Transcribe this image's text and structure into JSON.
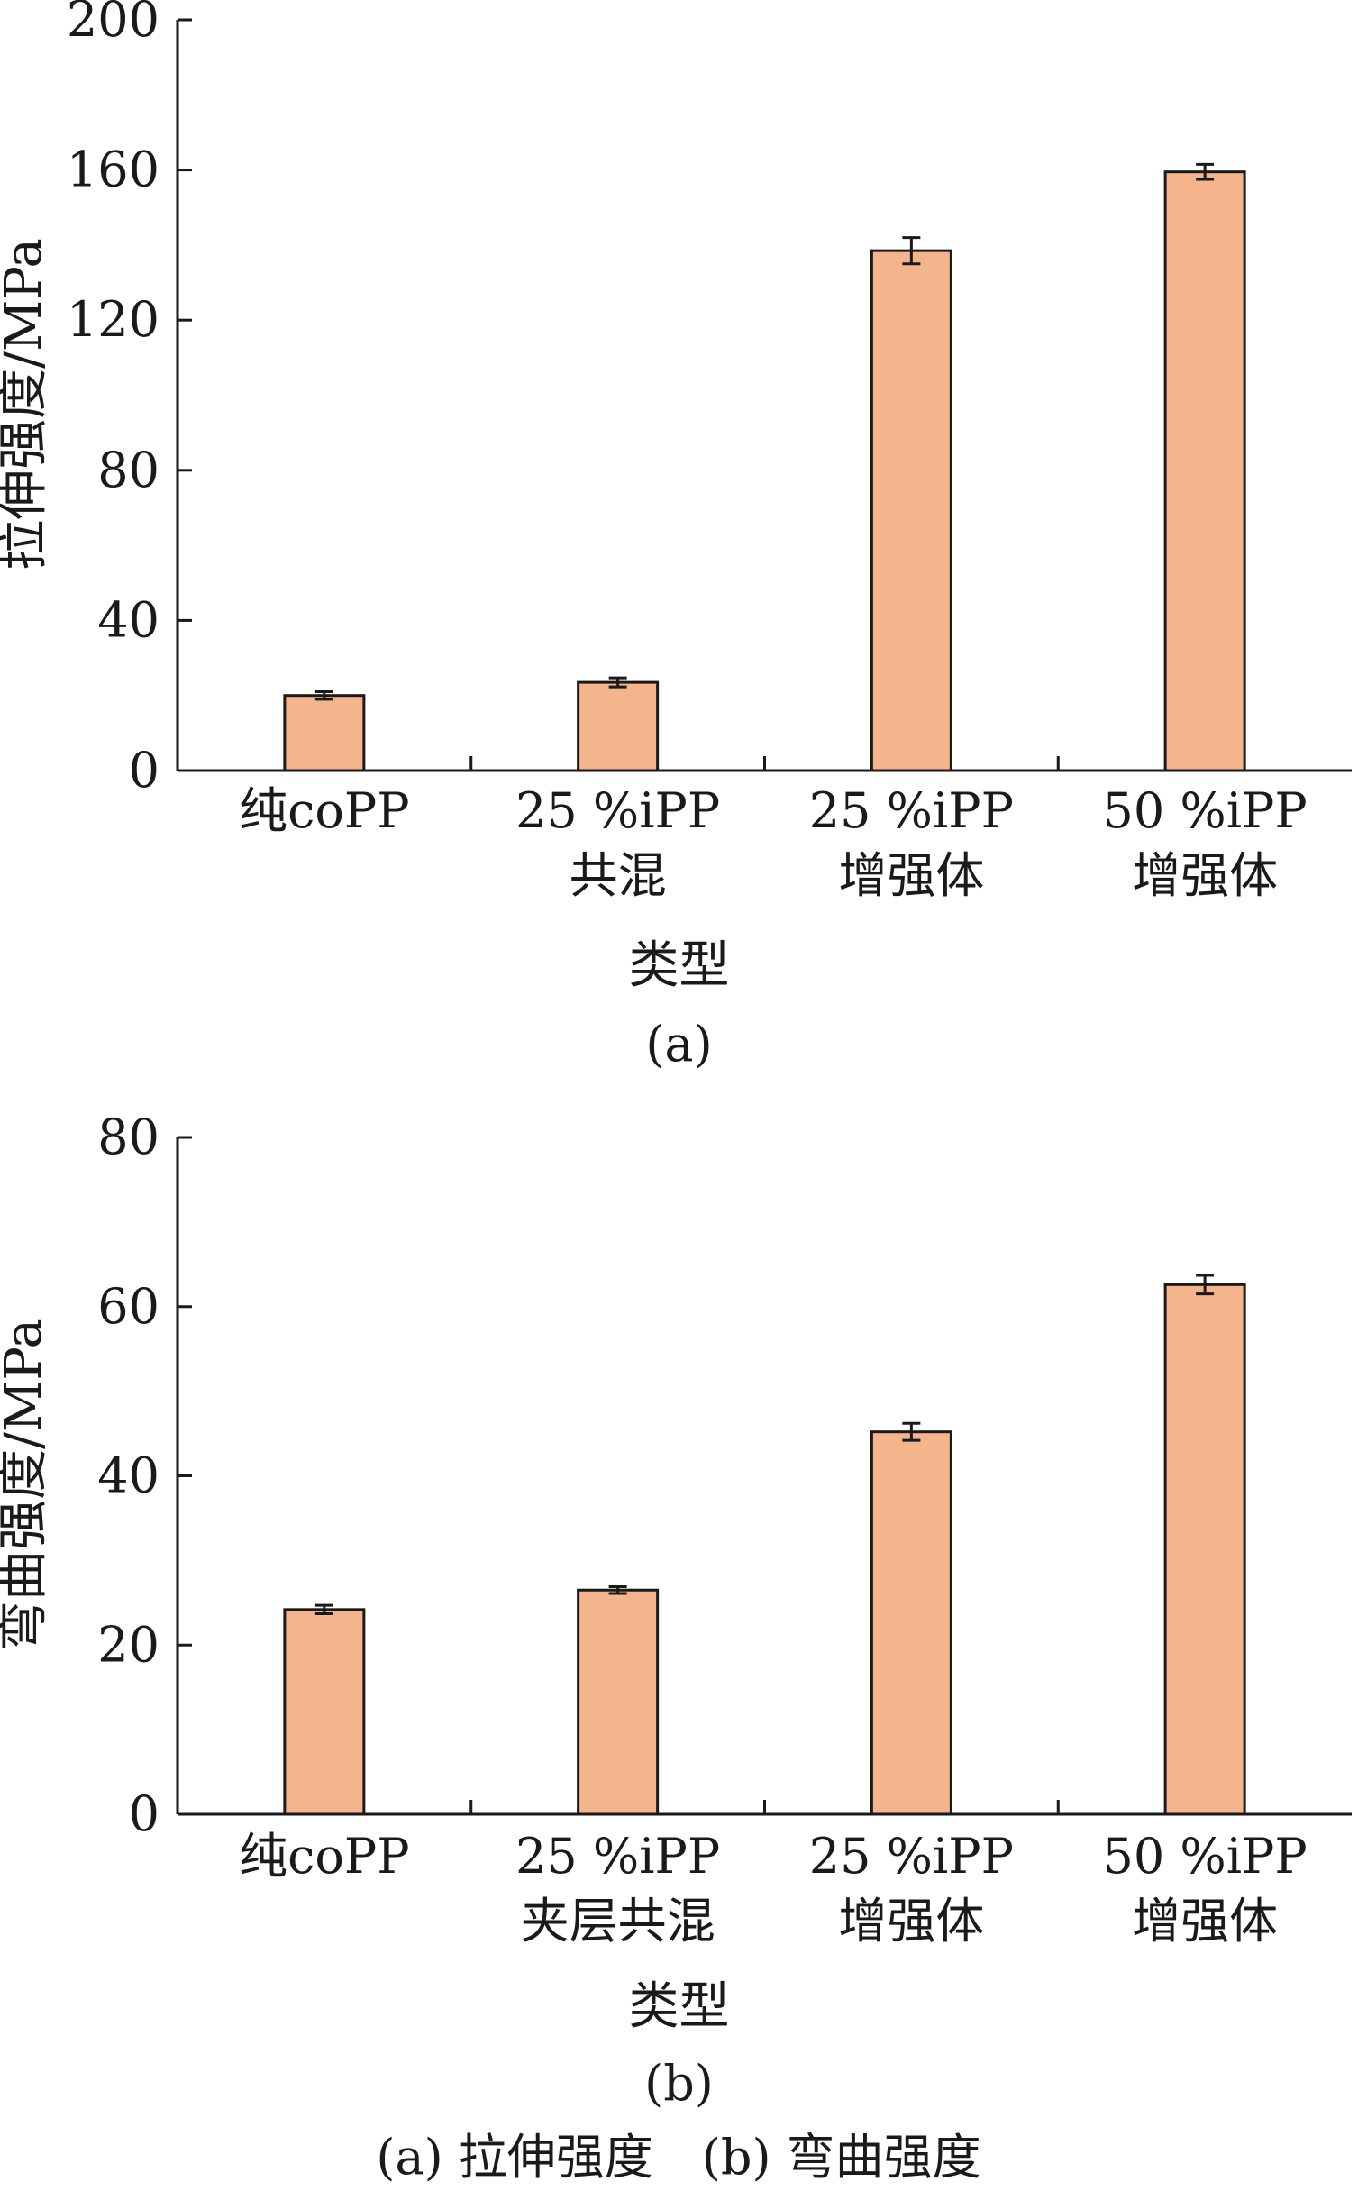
{
  "chart_data": [
    {
      "type": "bar",
      "panel_label": "(a)",
      "categories": [
        [
          "纯coPP"
        ],
        [
          "25 %iPP",
          "共混"
        ],
        [
          "25 %iPP",
          "增强体"
        ],
        [
          "50 %iPP",
          "增强体"
        ]
      ],
      "values": [
        20,
        23.5,
        138.5,
        159.5
      ],
      "errors": [
        1,
        1.2,
        3.5,
        2
      ],
      "xlabel": "类型",
      "ylabel": "拉伸强度/MPa",
      "ylim": [
        0,
        200
      ],
      "yticks": [
        0,
        40,
        80,
        120,
        160,
        200
      ],
      "bar_color": "#f4b48c",
      "grid": false
    },
    {
      "type": "bar",
      "panel_label": "(b)",
      "categories": [
        [
          "纯coPP"
        ],
        [
          "25 %iPP",
          "夹层共混"
        ],
        [
          "25 %iPP",
          "增强体"
        ],
        [
          "50 %iPP",
          "增强体"
        ]
      ],
      "values": [
        24.2,
        26.5,
        45.2,
        62.6
      ],
      "errors": [
        0.5,
        0.4,
        1.0,
        1.1
      ],
      "xlabel": "类型",
      "ylabel": "弯曲强度/MPa",
      "ylim": [
        0,
        80
      ],
      "yticks": [
        0,
        20,
        40,
        60,
        80
      ],
      "bar_color": "#f4b48c",
      "grid": false
    }
  ],
  "caption": "(a) 拉伸强度　(b) 弯曲强度"
}
